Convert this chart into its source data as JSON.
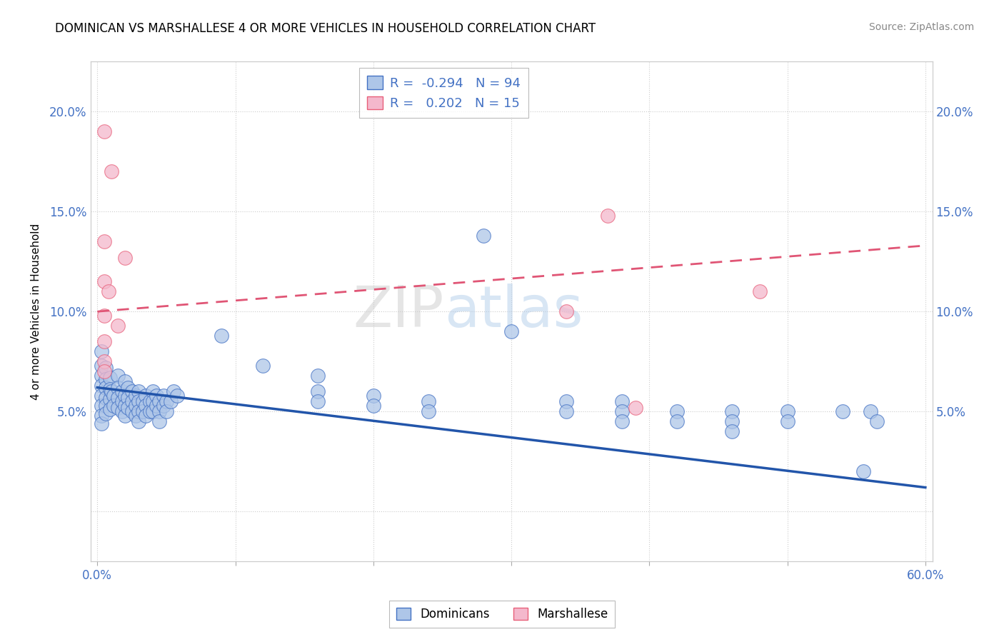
{
  "title": "DOMINICAN VS MARSHALLESE 4 OR MORE VEHICLES IN HOUSEHOLD CORRELATION CHART",
  "source": "Source: ZipAtlas.com",
  "ylabel": "4 or more Vehicles in Household",
  "ytick_labels": [
    "",
    "5.0%",
    "10.0%",
    "15.0%",
    "20.0%"
  ],
  "ytick_values": [
    0.0,
    0.05,
    0.1,
    0.15,
    0.2
  ],
  "xlim": [
    -0.005,
    0.605
  ],
  "ylim": [
    -0.025,
    0.225
  ],
  "plot_ylim": [
    0.0,
    0.21
  ],
  "dominican_legend": "R =  -0.294   N = 94",
  "marshallese_legend": "R =   0.202   N = 15",
  "dominican_color": "#aec6e8",
  "marshallese_color": "#f4b8cc",
  "dominican_edge_color": "#4472c4",
  "marshallese_edge_color": "#e8607a",
  "dominican_line_color": "#2255aa",
  "marshallese_line_color": "#e05575",
  "watermark_text": "ZIPatlas",
  "dominican_line": {
    "x0": 0.0,
    "x1": 0.6,
    "y0": 0.062,
    "y1": 0.012
  },
  "marshallese_line": {
    "x0": 0.0,
    "x1": 0.6,
    "y0": 0.1,
    "y1": 0.133
  },
  "dominican_scatter": [
    [
      0.003,
      0.08
    ],
    [
      0.003,
      0.073
    ],
    [
      0.003,
      0.068
    ],
    [
      0.003,
      0.063
    ],
    [
      0.003,
      0.058
    ],
    [
      0.003,
      0.053
    ],
    [
      0.003,
      0.048
    ],
    [
      0.003,
      0.044
    ],
    [
      0.006,
      0.072
    ],
    [
      0.006,
      0.066
    ],
    [
      0.006,
      0.062
    ],
    [
      0.006,
      0.057
    ],
    [
      0.006,
      0.053
    ],
    [
      0.006,
      0.049
    ],
    [
      0.009,
      0.067
    ],
    [
      0.009,
      0.061
    ],
    [
      0.009,
      0.056
    ],
    [
      0.009,
      0.051
    ],
    [
      0.01,
      0.06
    ],
    [
      0.012,
      0.058
    ],
    [
      0.012,
      0.053
    ],
    [
      0.015,
      0.068
    ],
    [
      0.015,
      0.062
    ],
    [
      0.015,
      0.057
    ],
    [
      0.015,
      0.052
    ],
    [
      0.018,
      0.06
    ],
    [
      0.018,
      0.055
    ],
    [
      0.018,
      0.05
    ],
    [
      0.02,
      0.065
    ],
    [
      0.02,
      0.058
    ],
    [
      0.02,
      0.053
    ],
    [
      0.02,
      0.048
    ],
    [
      0.022,
      0.062
    ],
    [
      0.022,
      0.057
    ],
    [
      0.022,
      0.052
    ],
    [
      0.025,
      0.06
    ],
    [
      0.025,
      0.055
    ],
    [
      0.025,
      0.05
    ],
    [
      0.028,
      0.058
    ],
    [
      0.028,
      0.053
    ],
    [
      0.028,
      0.048
    ],
    [
      0.03,
      0.06
    ],
    [
      0.03,
      0.055
    ],
    [
      0.03,
      0.05
    ],
    [
      0.03,
      0.045
    ],
    [
      0.033,
      0.055
    ],
    [
      0.033,
      0.05
    ],
    [
      0.035,
      0.058
    ],
    [
      0.035,
      0.053
    ],
    [
      0.035,
      0.048
    ],
    [
      0.038,
      0.055
    ],
    [
      0.038,
      0.05
    ],
    [
      0.04,
      0.06
    ],
    [
      0.04,
      0.055
    ],
    [
      0.04,
      0.05
    ],
    [
      0.043,
      0.058
    ],
    [
      0.043,
      0.053
    ],
    [
      0.045,
      0.055
    ],
    [
      0.045,
      0.05
    ],
    [
      0.045,
      0.045
    ],
    [
      0.048,
      0.058
    ],
    [
      0.048,
      0.053
    ],
    [
      0.05,
      0.055
    ],
    [
      0.05,
      0.05
    ],
    [
      0.053,
      0.055
    ],
    [
      0.055,
      0.06
    ],
    [
      0.058,
      0.058
    ],
    [
      0.09,
      0.088
    ],
    [
      0.12,
      0.073
    ],
    [
      0.16,
      0.068
    ],
    [
      0.16,
      0.06
    ],
    [
      0.16,
      0.055
    ],
    [
      0.2,
      0.058
    ],
    [
      0.2,
      0.053
    ],
    [
      0.24,
      0.055
    ],
    [
      0.24,
      0.05
    ],
    [
      0.28,
      0.138
    ],
    [
      0.3,
      0.09
    ],
    [
      0.34,
      0.055
    ],
    [
      0.34,
      0.05
    ],
    [
      0.38,
      0.055
    ],
    [
      0.38,
      0.05
    ],
    [
      0.38,
      0.045
    ],
    [
      0.42,
      0.05
    ],
    [
      0.42,
      0.045
    ],
    [
      0.46,
      0.05
    ],
    [
      0.46,
      0.045
    ],
    [
      0.46,
      0.04
    ],
    [
      0.5,
      0.05
    ],
    [
      0.5,
      0.045
    ],
    [
      0.54,
      0.05
    ],
    [
      0.555,
      0.02
    ],
    [
      0.56,
      0.05
    ],
    [
      0.565,
      0.045
    ]
  ],
  "marshallese_scatter": [
    [
      0.005,
      0.19
    ],
    [
      0.01,
      0.17
    ],
    [
      0.005,
      0.135
    ],
    [
      0.02,
      0.127
    ],
    [
      0.005,
      0.115
    ],
    [
      0.008,
      0.11
    ],
    [
      0.005,
      0.098
    ],
    [
      0.015,
      0.093
    ],
    [
      0.005,
      0.085
    ],
    [
      0.37,
      0.148
    ],
    [
      0.34,
      0.1
    ],
    [
      0.48,
      0.11
    ],
    [
      0.39,
      0.052
    ],
    [
      0.005,
      0.075
    ],
    [
      0.005,
      0.07
    ]
  ]
}
